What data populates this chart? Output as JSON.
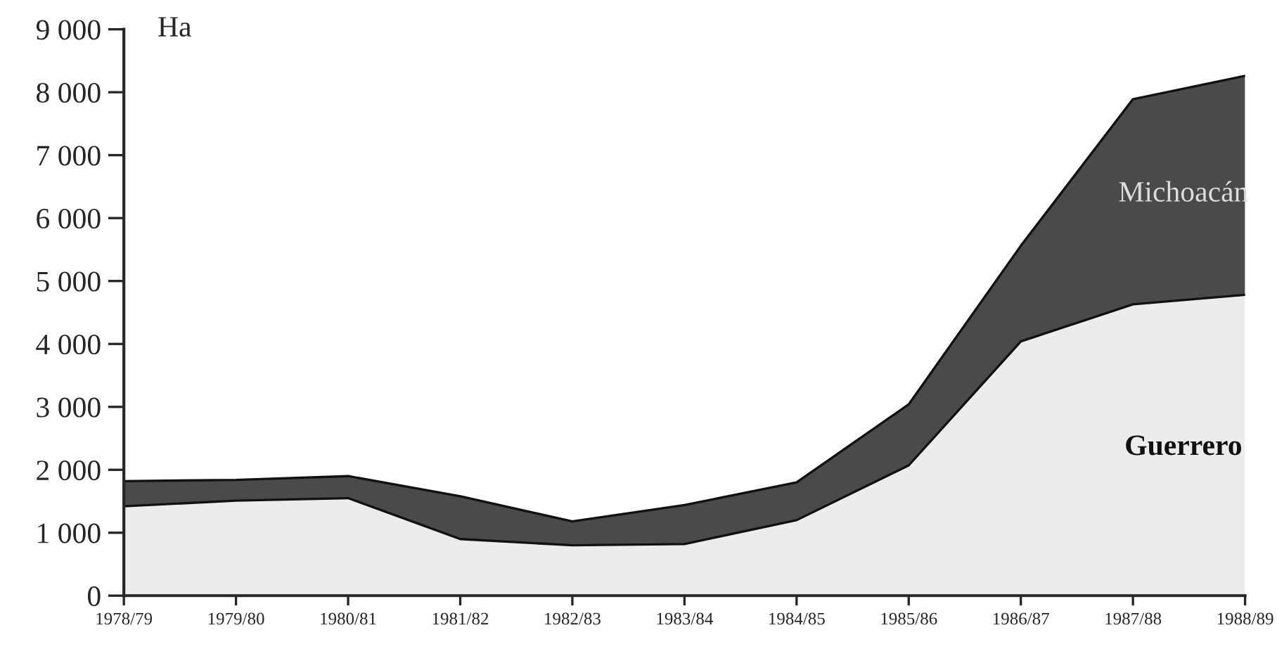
{
  "chart_data": {
    "type": "area",
    "stacked": true,
    "ylabel": "Ha",
    "categories": [
      "1978/79",
      "1979/80",
      "1980/81",
      "1981/82",
      "1982/83",
      "1983/84",
      "1984/85",
      "1985/86",
      "1986/87",
      "1987/88",
      "1988/89"
    ],
    "series": [
      {
        "name": "Guerrero",
        "color": "#ececec",
        "values": [
          1420,
          1510,
          1550,
          900,
          800,
          820,
          1200,
          2070,
          4040,
          4630,
          4780
        ]
      },
      {
        "name": "Michoacán",
        "color": "#4a4a4a",
        "values": [
          400,
          330,
          350,
          680,
          380,
          620,
          600,
          970,
          1520,
          3260,
          3480
        ]
      }
    ],
    "ylim": [
      0,
      9000
    ],
    "yticks": [
      0,
      {
        "value": 1000,
        "label": "1 000"
      },
      {
        "value": 2000,
        "label": "2 000"
      },
      {
        "value": 3000,
        "label": "3 000"
      },
      {
        "value": 4000,
        "label": "4 000"
      },
      {
        "value": 5000,
        "label": "5 000"
      },
      {
        "value": 6000,
        "label": "6 000"
      },
      {
        "value": 7000,
        "label": "7 000"
      },
      {
        "value": 8000,
        "label": "8 000"
      },
      {
        "value": 9000,
        "label": "9 000"
      }
    ],
    "grid": false,
    "legend": false
  }
}
